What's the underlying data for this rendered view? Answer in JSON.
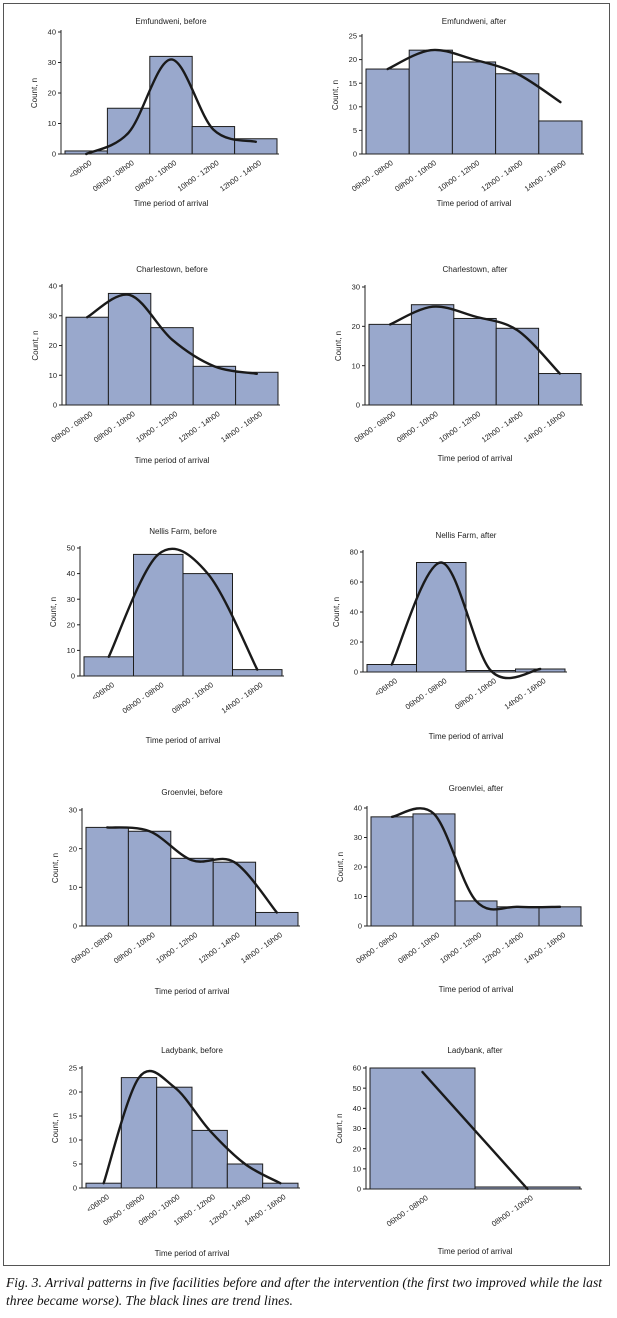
{
  "figure": {
    "caption": "Fig. 3. Arrival patterns in five facilities before and after the intervention (the first two improved while the last three became worse). The black lines are trend lines."
  },
  "chart_data": [
    {
      "type": "bar",
      "title": "Emfundweni, before",
      "xlabel": "Time period of arrival",
      "ylabel": "Count, n",
      "categories": [
        "<06h00",
        "06h00 - 08h00",
        "08h00 - 10h00",
        "10h00 - 12h00",
        "12h00 - 14h00"
      ],
      "values": [
        1,
        15,
        32,
        9,
        5
      ],
      "ylim": [
        0,
        40
      ],
      "yticks": [
        0,
        10,
        20,
        30,
        40
      ],
      "trend": [
        0,
        7,
        31,
        8,
        4
      ]
    },
    {
      "type": "bar",
      "title": "Emfundweni, after",
      "xlabel": "Time period of arrival",
      "ylabel": "Count, n",
      "categories": [
        "06h00 - 08h00",
        "08h00 - 10h00",
        "10h00 - 12h00",
        "12h00 - 14h00",
        "14h00 - 16h00"
      ],
      "values": [
        18,
        22,
        19.5,
        17,
        7
      ],
      "ylim": [
        0,
        25
      ],
      "yticks": [
        0,
        5,
        10,
        15,
        20,
        25
      ],
      "trend": [
        18,
        22,
        20,
        17,
        11
      ]
    },
    {
      "type": "bar",
      "title": "Charlestown, before",
      "xlabel": "Time period of arrival",
      "ylabel": "Count, n",
      "categories": [
        "06h00 - 08h00",
        "08h00 - 10h00",
        "10h00 - 12h00",
        "12h00 - 14h00",
        "14h00 - 16h00"
      ],
      "values": [
        29.5,
        37.5,
        26,
        13,
        11
      ],
      "ylim": [
        0,
        40
      ],
      "yticks": [
        0,
        10,
        20,
        30,
        40
      ],
      "trend": [
        29.5,
        37,
        22,
        13,
        10.5
      ]
    },
    {
      "type": "bar",
      "title": "Charlestown, after",
      "xlabel": "Time period of arrival",
      "ylabel": "Count, n",
      "categories": [
        "06h00 - 08h00",
        "08h00 - 10h00",
        "10h00 - 12h00",
        "12h00 - 14h00",
        "14h00 - 16h00"
      ],
      "values": [
        20.5,
        25.5,
        22,
        19.5,
        8
      ],
      "ylim": [
        0,
        30
      ],
      "yticks": [
        0,
        10,
        20,
        30
      ],
      "trend": [
        20.5,
        25,
        22.5,
        19,
        8
      ]
    },
    {
      "type": "bar",
      "title": "Nellis Farm, before",
      "xlabel": "Time period of arrival",
      "ylabel": "Count, n",
      "categories": [
        "<06h00",
        "06h00 - 08h00",
        "08h00 - 10h00",
        "14h00 - 16h00"
      ],
      "values": [
        7.5,
        47.5,
        40,
        2.5
      ],
      "ylim": [
        0,
        50
      ],
      "yticks": [
        0,
        10,
        20,
        30,
        40,
        50
      ],
      "trend": [
        7.5,
        47.5,
        40,
        2.5
      ]
    },
    {
      "type": "bar",
      "title": "Nellis Farm, after",
      "xlabel": "Time period of arrival",
      "ylabel": "Count, n",
      "categories": [
        "<06h00",
        "06h00 - 08h00",
        "08h00 - 10h00",
        "14h00 - 16h00"
      ],
      "values": [
        5,
        73,
        1,
        2
      ],
      "ylim": [
        0,
        80
      ],
      "yticks": [
        0,
        20,
        40,
        60,
        80
      ],
      "trend": [
        5,
        73,
        1,
        2
      ]
    },
    {
      "type": "bar",
      "title": "Groenvlei, before",
      "xlabel": "Time period of arrival",
      "ylabel": "Count, n",
      "categories": [
        "06h00 - 08h00",
        "08h00 - 10h00",
        "10h00 - 12h00",
        "12h00 - 14h00",
        "14h00 - 16h00"
      ],
      "values": [
        25.5,
        24.5,
        17.5,
        16.5,
        3.5
      ],
      "ylim": [
        0,
        30
      ],
      "yticks": [
        0,
        10,
        20,
        30
      ],
      "trend": [
        25.5,
        24.5,
        17,
        16.5,
        3.5
      ]
    },
    {
      "type": "bar",
      "title": "Groenvlei, after",
      "xlabel": "Time period of arrival",
      "ylabel": "Count, n",
      "categories": [
        "06h00 - 08h00",
        "08h00 - 10h00",
        "10h00 - 12h00",
        "12h00 - 14h00",
        "14h00 - 16h00"
      ],
      "values": [
        37,
        38,
        8.5,
        6.5,
        6.5
      ],
      "ylim": [
        0,
        40
      ],
      "yticks": [
        0,
        10,
        20,
        30,
        40
      ],
      "trend": [
        37,
        38,
        8.5,
        6.5,
        6.5
      ]
    },
    {
      "type": "bar",
      "title": "Ladybank, before",
      "xlabel": "Time period of arrival",
      "ylabel": "Count, n",
      "categories": [
        "<06h00",
        "06h00 - 08h00",
        "08h00 - 10h00",
        "10h00 - 12h00",
        "12h00 - 14h00",
        "14h00 - 16h00"
      ],
      "values": [
        1,
        23,
        21,
        12,
        5,
        1
      ],
      "ylim": [
        0,
        25
      ],
      "yticks": [
        0,
        5,
        10,
        15,
        20,
        25
      ],
      "trend": [
        1,
        23,
        21,
        12,
        5,
        1
      ]
    },
    {
      "type": "bar",
      "title": "Ladybank, after",
      "xlabel": "Time period of arrival",
      "ylabel": "Count, n",
      "categories": [
        "06h00 - 08h00",
        "08h00 - 10h00"
      ],
      "values": [
        60,
        1
      ],
      "ylim": [
        0,
        60
      ],
      "yticks": [
        0,
        10,
        20,
        30,
        40,
        50,
        60
      ],
      "trend": [
        58,
        0
      ]
    }
  ]
}
